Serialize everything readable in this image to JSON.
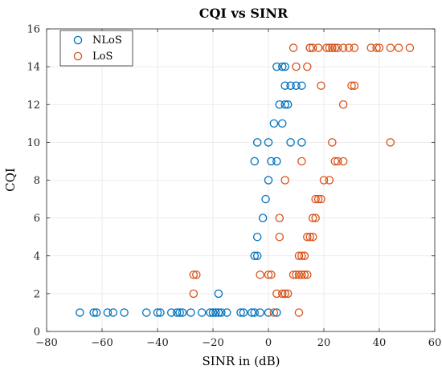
{
  "chart_data": {
    "type": "scatter",
    "title": "CQI vs SINR",
    "xlabel": "SINR in (dB)",
    "ylabel": "CQI",
    "xlim": [
      -80,
      60
    ],
    "ylim": [
      0,
      16
    ],
    "xticks": [
      -80,
      -60,
      -40,
      -20,
      0,
      20,
      40,
      60
    ],
    "yticks": [
      0,
      2,
      4,
      6,
      8,
      10,
      12,
      14,
      16
    ],
    "grid": true,
    "legend_position": "top-left",
    "series": [
      {
        "name": "NLoS",
        "color": "#0072BD",
        "points": [
          [
            -68,
            1
          ],
          [
            -63,
            1
          ],
          [
            -62,
            1
          ],
          [
            -58,
            1
          ],
          [
            -56,
            1
          ],
          [
            -52,
            1
          ],
          [
            -44,
            1
          ],
          [
            -40,
            1
          ],
          [
            -39,
            1
          ],
          [
            -35,
            1
          ],
          [
            -33,
            1
          ],
          [
            -32,
            1
          ],
          [
            -31,
            1
          ],
          [
            -28,
            1
          ],
          [
            -24,
            1
          ],
          [
            -21,
            1
          ],
          [
            -20,
            1
          ],
          [
            -19,
            1
          ],
          [
            -18,
            1
          ],
          [
            -17,
            1
          ],
          [
            -15,
            1
          ],
          [
            -10,
            1
          ],
          [
            -9,
            1
          ],
          [
            -6,
            1
          ],
          [
            -5,
            1
          ],
          [
            -3,
            1
          ],
          [
            0,
            1
          ],
          [
            3,
            1
          ],
          [
            -18,
            2
          ],
          [
            -5,
            4
          ],
          [
            -4,
            4
          ],
          [
            -4,
            5
          ],
          [
            -2,
            6
          ],
          [
            -1,
            7
          ],
          [
            0,
            8
          ],
          [
            -5,
            9
          ],
          [
            1,
            9
          ],
          [
            3,
            9
          ],
          [
            -4,
            10
          ],
          [
            0,
            10
          ],
          [
            8,
            10
          ],
          [
            12,
            10
          ],
          [
            2,
            11
          ],
          [
            5,
            11
          ],
          [
            4,
            12
          ],
          [
            6,
            12
          ],
          [
            7,
            12
          ],
          [
            6,
            13
          ],
          [
            8,
            13
          ],
          [
            10,
            13
          ],
          [
            12,
            13
          ],
          [
            3,
            14
          ],
          [
            5,
            14
          ],
          [
            6,
            14
          ],
          [
            15,
            15
          ]
        ]
      },
      {
        "name": "LoS",
        "color": "#D95319",
        "points": [
          [
            2,
            1
          ],
          [
            11,
            1
          ],
          [
            -27,
            2
          ],
          [
            3,
            2
          ],
          [
            5,
            2
          ],
          [
            6,
            2
          ],
          [
            7,
            2
          ],
          [
            -27,
            3
          ],
          [
            -26,
            3
          ],
          [
            -3,
            3
          ],
          [
            0,
            3
          ],
          [
            1,
            3
          ],
          [
            9,
            3
          ],
          [
            10,
            3
          ],
          [
            11,
            3
          ],
          [
            12,
            3
          ],
          [
            13,
            3
          ],
          [
            14,
            3
          ],
          [
            11,
            4
          ],
          [
            12,
            4
          ],
          [
            13,
            4
          ],
          [
            4,
            5
          ],
          [
            14,
            5
          ],
          [
            15,
            5
          ],
          [
            16,
            5
          ],
          [
            4,
            6
          ],
          [
            16,
            6
          ],
          [
            17,
            6
          ],
          [
            17,
            7
          ],
          [
            18,
            7
          ],
          [
            19,
            7
          ],
          [
            6,
            8
          ],
          [
            20,
            8
          ],
          [
            22,
            8
          ],
          [
            12,
            9
          ],
          [
            24,
            9
          ],
          [
            25,
            9
          ],
          [
            27,
            9
          ],
          [
            23,
            10
          ],
          [
            44,
            10
          ],
          [
            27,
            12
          ],
          [
            19,
            13
          ],
          [
            30,
            13
          ],
          [
            31,
            13
          ],
          [
            10,
            14
          ],
          [
            14,
            14
          ],
          [
            9,
            15
          ],
          [
            15,
            15
          ],
          [
            16,
            15
          ],
          [
            18,
            15
          ],
          [
            21,
            15
          ],
          [
            22,
            15
          ],
          [
            23,
            15
          ],
          [
            24,
            15
          ],
          [
            25,
            15
          ],
          [
            27,
            15
          ],
          [
            29,
            15
          ],
          [
            31,
            15
          ],
          [
            37,
            15
          ],
          [
            39,
            15
          ],
          [
            40,
            15
          ],
          [
            44,
            15
          ],
          [
            47,
            15
          ],
          [
            51,
            15
          ]
        ]
      }
    ]
  }
}
